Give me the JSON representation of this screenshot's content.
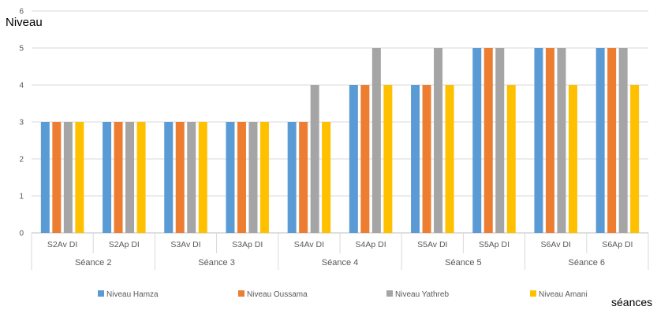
{
  "chart_data": {
    "type": "bar",
    "ylabel": "Niveau",
    "xlabel": "séances",
    "ylim": [
      0,
      6
    ],
    "yticks": [
      "0",
      "1",
      "2",
      "3",
      "4",
      "5",
      "6"
    ],
    "grid": true,
    "legend_position": "bottom",
    "categories": [
      "S2Av DI",
      "S2Ap DI",
      "S3Av DI",
      "S3Ap DI",
      "S4Av DI",
      "S4Ap DI",
      "S5Av DI",
      "S5Ap DI",
      "S6Av DI",
      "S6Ap DI"
    ],
    "groups": [
      {
        "label": "Séance 2",
        "span": 2
      },
      {
        "label": "Séance 3",
        "span": 2
      },
      {
        "label": "Séance 4",
        "span": 2
      },
      {
        "label": "Séance 5",
        "span": 2
      },
      {
        "label": "Séance 6",
        "span": 2
      }
    ],
    "series": [
      {
        "name": "Niveau Hamza",
        "color": "#5B9BD5",
        "values": [
          3,
          3,
          3,
          3,
          3,
          4,
          4,
          5,
          5,
          5
        ]
      },
      {
        "name": "Niveau Oussama",
        "color": "#ED7D31",
        "values": [
          3,
          3,
          3,
          3,
          3,
          4,
          4,
          5,
          5,
          5
        ]
      },
      {
        "name": "Niveau Yathreb",
        "color": "#A5A5A5",
        "values": [
          3,
          3,
          3,
          3,
          4,
          5,
          5,
          5,
          5,
          5
        ]
      },
      {
        "name": "Niveau Amani",
        "color": "#FFC000",
        "values": [
          3,
          3,
          3,
          3,
          3,
          4,
          4,
          4,
          4,
          4
        ]
      }
    ]
  }
}
